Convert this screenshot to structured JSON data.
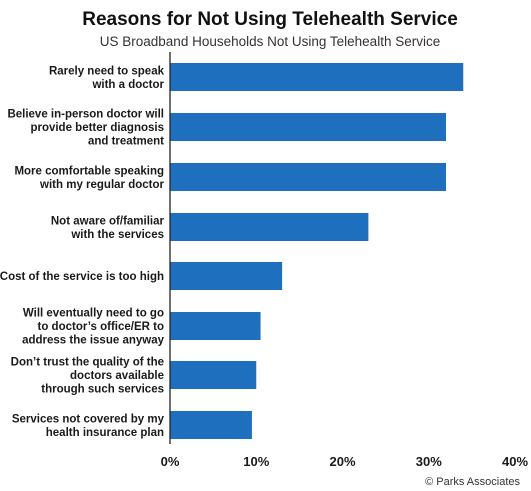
{
  "chart_data": {
    "type": "bar",
    "orientation": "horizontal",
    "title": "Reasons for Not Using Telehealth Service",
    "subtitle": "US Broadband Households Not Using Telehealth Service",
    "categories": [
      "Rarely need to speak with a doctor",
      "Believe in-person doctor will provide better diagnosis and treatment",
      "More comfortable speaking with my regular doctor",
      "Not aware of/familiar with the services",
      "Cost of the service is too high",
      "Will eventually need to go to doctor’s office/ER to address the issue anyway",
      "Don’t trust the quality of the doctors available through such services",
      "Services not covered by my health insurance plan"
    ],
    "category_label_lines": [
      [
        "Rarely need to speak",
        "with a doctor"
      ],
      [
        "Believe in-person doctor will",
        "provide better diagnosis",
        "and treatment"
      ],
      [
        "More comfortable speaking",
        "with my regular doctor"
      ],
      [
        "Not aware of/familiar",
        "with the services"
      ],
      [
        "Cost of the service is too high"
      ],
      [
        "Will eventually need to go",
        "to doctor’s office/ER to",
        "address the issue anyway"
      ],
      [
        "Don’t trust the quality of the",
        "doctors available",
        "through such services"
      ],
      [
        "Services not covered by my",
        "health insurance plan"
      ]
    ],
    "values": [
      34,
      32,
      32,
      23,
      13,
      10.5,
      10,
      9.5
    ],
    "unit": "%",
    "xlim": [
      0,
      40
    ],
    "x_ticks": [
      "0%",
      "10%",
      "20%",
      "30%",
      "40%"
    ],
    "bar_color": "#1f6fbf",
    "grid": false,
    "legend": "none",
    "source": "© Parks Associates"
  }
}
